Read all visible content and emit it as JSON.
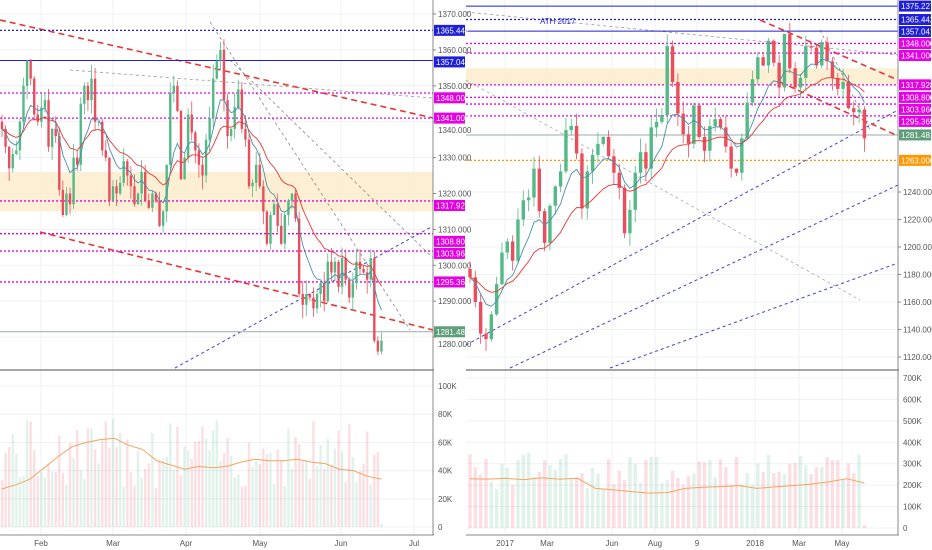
{
  "chart_data": [
    {
      "type": "candlestick",
      "name": "daily",
      "title": "",
      "x_ticks": [
        "Feb",
        "Mar",
        "Apr",
        "May",
        "Jun",
        "Jul"
      ],
      "y_ticks": [
        "1370.000",
        "1360.000",
        "1350.000",
        "1340.000",
        "1330.000",
        "1320.000",
        "1310.000",
        "1300.000",
        "1290.000",
        "1280.000"
      ],
      "ylim": [
        1276,
        1372
      ],
      "closes": [
        1338,
        1333,
        1327,
        1331,
        1332,
        1340,
        1350,
        1357,
        1352,
        1342,
        1340,
        1344,
        1346,
        1333,
        1338,
        1336,
        1321,
        1314,
        1320,
        1317,
        1330,
        1328,
        1345,
        1350,
        1346,
        1352,
        1340,
        1340,
        1332,
        1330,
        1318,
        1322,
        1320,
        1323,
        1329,
        1325,
        1322,
        1317,
        1320,
        1326,
        1318,
        1316,
        1320,
        1318,
        1311,
        1315,
        1328,
        1348,
        1350,
        1343,
        1324,
        1330,
        1342,
        1337,
        1332,
        1328,
        1325,
        1335,
        1341,
        1352,
        1357,
        1360,
        1346,
        1336,
        1338,
        1344,
        1349,
        1338,
        1335,
        1322,
        1323,
        1328,
        1322,
        1315,
        1306,
        1314,
        1317,
        1311,
        1306,
        1314,
        1318,
        1320,
        1313,
        1292,
        1289,
        1292,
        1291,
        1288,
        1292,
        1295,
        1290,
        1301,
        1298,
        1301,
        1294,
        1302,
        1296,
        1291,
        1295,
        1301,
        1299,
        1298,
        1296,
        1302,
        1279,
        1276,
        1279
      ],
      "levels": [
        {
          "value": 1365.442,
          "label": "1365.442",
          "color": "#1f1fd6",
          "style": "dotted"
        },
        {
          "value": 1357.041,
          "label": "1357.041",
          "color": "#1f1fd6",
          "style": "solid"
        },
        {
          "value": 1348.0,
          "label": "1348.000",
          "color": "#e600e6",
          "style": "dotted"
        },
        {
          "value": 1341.0,
          "label": "1341.000",
          "color": "#e600e6",
          "style": "dotted"
        },
        {
          "value": 1317.928,
          "label": "1317.928",
          "color": "#e600e6",
          "style": "dotted"
        },
        {
          "value": 1308.8,
          "label": "1308.800",
          "color": "#e600e6",
          "style": "dotted"
        },
        {
          "value": 1303.966,
          "label": "1303.966",
          "color": "#e600e6",
          "style": "dotted"
        },
        {
          "value": 1295.365,
          "label": "1295.365",
          "color": "#e600e6",
          "style": "dotted"
        },
        {
          "value": 1281.481,
          "label": "1281.481",
          "color": "#5f9e7b",
          "style": "solid"
        }
      ],
      "zone": [
        1315,
        1326
      ],
      "volume_ticks": [
        "100K",
        "80K",
        "60K",
        "40K",
        "20K",
        "0"
      ],
      "volume_max": 110000,
      "volume_ma": [
        27000,
        30000,
        34000,
        42000,
        50000,
        57000,
        60000,
        62000,
        63000,
        58000,
        55000,
        47000,
        44000,
        41000,
        43000,
        42000,
        43000,
        46000,
        48000,
        47000,
        47000,
        48000,
        46000,
        45000,
        41000,
        40000,
        36000,
        34000
      ]
    },
    {
      "type": "candlestick",
      "name": "weekly",
      "title": "",
      "annotation": "ATH 2017",
      "x_ticks": [
        "2017",
        "Mar",
        "Jun",
        "Aug",
        "9",
        "2018",
        "Mar",
        "May"
      ],
      "y_ticks": [
        "1240.000",
        "1220.000",
        "1200.000",
        "1180.000",
        "1160.000",
        "1140.000",
        "1120.000"
      ],
      "ylim": [
        1116,
        1380
      ],
      "closes": [
        1178,
        1160,
        1137,
        1133,
        1151,
        1173,
        1196,
        1204,
        1190,
        1220,
        1234,
        1236,
        1257,
        1226,
        1203,
        1230,
        1244,
        1255,
        1285,
        1288,
        1268,
        1228,
        1255,
        1267,
        1275,
        1280,
        1266,
        1254,
        1243,
        1210,
        1227,
        1254,
        1269,
        1257,
        1287,
        1291,
        1296,
        1346,
        1320,
        1297,
        1282,
        1275,
        1303,
        1280,
        1270,
        1288,
        1293,
        1287,
        1273,
        1257,
        1254,
        1279,
        1305,
        1322,
        1338,
        1332,
        1350,
        1334,
        1316,
        1355,
        1330,
        1316,
        1323,
        1346,
        1345,
        1332,
        1349,
        1335,
        1323,
        1315,
        1320,
        1301,
        1298,
        1300,
        1279
      ],
      "levels": [
        {
          "value": 1375.227,
          "label": "1375.227",
          "color": "#1f1fd6",
          "style": "solid"
        },
        {
          "value": 1365.442,
          "label": "1365.442",
          "color": "#1f1fd6",
          "style": "dotted"
        },
        {
          "value": 1357.041,
          "label": "1357.041",
          "color": "#1f1fd6",
          "style": "solid"
        },
        {
          "value": 1348.0,
          "label": "1348.000",
          "color": "#e600e6",
          "style": "dotted"
        },
        {
          "value": 1341.0,
          "label": "1341.000",
          "color": "#e600e6",
          "style": "dotted"
        },
        {
          "value": 1317.928,
          "label": "1317.928",
          "color": "#e600e6",
          "style": "dotted"
        },
        {
          "value": 1308.8,
          "label": "1308.800",
          "color": "#e600e6",
          "style": "dotted"
        },
        {
          "value": 1303.966,
          "label": "1303.966",
          "color": "#e600e6",
          "style": "dotted"
        },
        {
          "value": 1295.365,
          "label": "1295.365",
          "color": "#e600e6",
          "style": "dotted"
        },
        {
          "value": 1281.481,
          "label": "1281.481",
          "color": "#5f9e7b",
          "style": "solid"
        },
        {
          "value": 1263.0,
          "label": "1263.000",
          "color": "#ff9800",
          "style": "dotted"
        }
      ],
      "zone": [
        1318,
        1330
      ],
      "volume_ticks": [
        "700K",
        "600K",
        "500K",
        "400K",
        "300K",
        "200K",
        "100K",
        "0"
      ],
      "volume_max": 720000,
      "volume_ma": [
        230000,
        228000,
        232000,
        226000,
        234000,
        228000,
        232000,
        185000,
        178000,
        170000,
        163000,
        165000,
        185000,
        190000,
        193000,
        198000,
        185000,
        192000,
        198000,
        205000,
        215000,
        230000,
        210000
      ]
    }
  ],
  "colors": {
    "up": "#53b987",
    "down": "#eb4d5c",
    "accent_red": "#e53935",
    "trend_blue": "#3f3fd6"
  }
}
